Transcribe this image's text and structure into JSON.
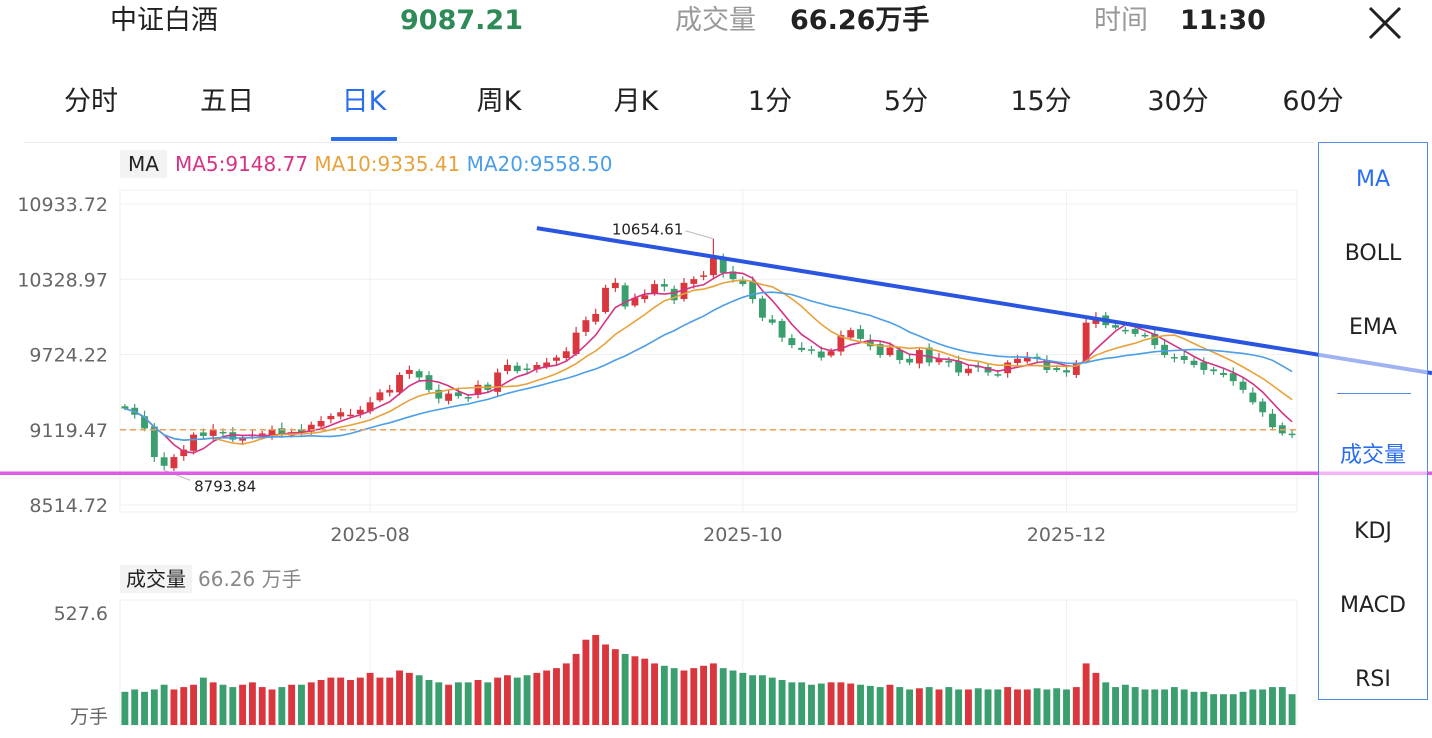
{
  "header": {
    "name": "中证白酒",
    "price": "9087.21",
    "volume_label": "成交量",
    "volume": "66.26万手",
    "time_label": "时间",
    "time": "11:30",
    "close_icon": "close-icon"
  },
  "tabs": [
    "分时",
    "五日",
    "日K",
    "周K",
    "月K",
    "1分",
    "5分",
    "15分",
    "30分",
    "60分"
  ],
  "active_tab": "日K",
  "indicators": {
    "main": [
      "MA",
      "BOLL",
      "EMA"
    ],
    "sub": [
      "成交量",
      "KDJ",
      "MACD",
      "RSI"
    ],
    "active_main": "MA",
    "active_sub": "成交量"
  },
  "ma_legend": {
    "tag": "MA",
    "ma5": "MA5:9148.77",
    "ma10": "MA10:9335.41",
    "ma20": "MA20:9558.50"
  },
  "volume_legend": {
    "tag": "成交量",
    "value": "66.26 万手"
  },
  "colors": {
    "up": "#d9363e",
    "down": "#3a9e6e",
    "ma5": "#d63384",
    "ma10": "#e8a23c",
    "ma20": "#4b9ee8",
    "trendline": "#2a55e0",
    "accent": "#2a6ef0",
    "price_line": "#e8a05a",
    "cursor_line": "#e05ae8"
  },
  "chart_data": {
    "type": "candlestick",
    "y_ticks": [
      "10933.72",
      "10328.97",
      "9724.22",
      "9119.47",
      "8514.72"
    ],
    "y_tick_values": [
      10933.72,
      10328.97,
      9724.22,
      9119.47,
      8514.72
    ],
    "ylim": [
      8514.72,
      10933.72
    ],
    "x_ticks": [
      "2025-08",
      "2025-10",
      "2025-12"
    ],
    "x_tick_index": [
      25,
      63,
      96
    ],
    "annotations": [
      {
        "label": "10654.61",
        "index": 60,
        "value": 10654.61,
        "type": "max"
      },
      {
        "label": "8793.84",
        "index": 4,
        "value": 8793.84,
        "type": "min"
      }
    ],
    "current_price": 9119.47,
    "cursor_price": 8770,
    "trendline": {
      "start": {
        "index": 42,
        "value": 10740
      },
      "end": {
        "index": 125,
        "value": 9680
      }
    },
    "ma": {
      "ma5": 9148.77,
      "ma10": 9335.41,
      "ma20": 9558.5
    },
    "closes": [
      9290,
      9240,
      9130,
      8900,
      8830,
      8900,
      8960,
      9080,
      9070,
      9120,
      9090,
      9040,
      9050,
      9080,
      9090,
      9120,
      9080,
      9100,
      9100,
      9160,
      9190,
      9230,
      9260,
      9240,
      9280,
      9340,
      9420,
      9440,
      9560,
      9600,
      9540,
      9440,
      9370,
      9410,
      9390,
      9380,
      9480,
      9440,
      9580,
      9640,
      9590,
      9600,
      9640,
      9660,
      9700,
      9750,
      9900,
      10000,
      10050,
      10260,
      10300,
      10110,
      10180,
      10200,
      10290,
      10270,
      10160,
      10300,
      10330,
      10360,
      10520,
      10380,
      10330,
      10290,
      10170,
      10020,
      9980,
      9860,
      9800,
      9760,
      9760,
      9700,
      9750,
      9880,
      9920,
      9850,
      9790,
      9720,
      9780,
      9680,
      9660,
      9760,
      9660,
      9690,
      9660,
      9580,
      9610,
      9620,
      9580,
      9560,
      9660,
      9690,
      9700,
      9690,
      9600,
      9600,
      9580,
      9660,
      9980,
      10020,
      9960,
      9940,
      9920,
      9890,
      9870,
      9800,
      9720,
      9700,
      9680,
      9640,
      9600,
      9590,
      9560,
      9510,
      9440,
      9340,
      9260,
      9140,
      9090,
      9087
    ],
    "volumes": [
      140,
      150,
      140,
      150,
      170,
      150,
      160,
      170,
      200,
      180,
      170,
      160,
      170,
      180,
      160,
      150,
      160,
      170,
      170,
      180,
      190,
      200,
      200,
      190,
      200,
      220,
      200,
      200,
      230,
      220,
      210,
      190,
      180,
      170,
      180,
      180,
      190,
      180,
      200,
      210,
      200,
      210,
      220,
      230,
      240,
      260,
      300,
      360,
      380,
      340,
      320,
      300,
      290,
      280,
      260,
      250,
      240,
      230,
      240,
      250,
      260,
      240,
      230,
      220,
      210,
      210,
      200,
      190,
      180,
      180,
      170,
      175,
      180,
      180,
      175,
      170,
      165,
      160,
      170,
      160,
      150,
      155,
      160,
      150,
      160,
      150,
      150,
      155,
      150,
      150,
      160,
      150,
      150,
      155,
      150,
      155,
      150,
      160,
      260,
      220,
      180,
      160,
      170,
      160,
      150,
      150,
      150,
      160,
      150,
      140,
      140,
      130,
      130,
      130,
      140,
      150,
      150,
      160,
      160,
      130
    ]
  },
  "y_axis_volume": {
    "top_label": "527.6",
    "unit_label": "万手",
    "max": 527.6
  }
}
